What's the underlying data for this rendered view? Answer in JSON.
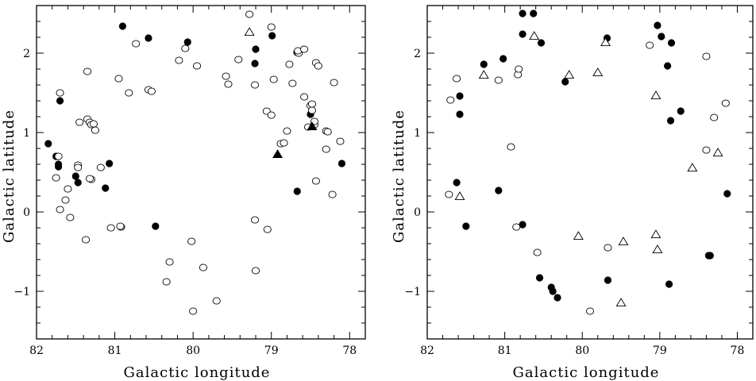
{
  "chart_data": [
    {
      "type": "scatter",
      "title": "",
      "xlabel": "Galactic longitude",
      "ylabel": "Galactic latitude",
      "xlim": [
        82,
        77.8
      ],
      "ylim": [
        -1.6,
        2.6
      ],
      "xticks": [
        82,
        81,
        80,
        79,
        78
      ],
      "yticks": [
        -1,
        0,
        1,
        2
      ],
      "grid": false,
      "legend": "none",
      "series": [
        {
          "marker": "filled-circle",
          "points": [
            [
              81.85,
              0.86
            ],
            [
              81.75,
              0.7
            ],
            [
              81.72,
              0.6
            ],
            [
              81.72,
              0.57
            ],
            [
              81.7,
              1.4
            ],
            [
              81.5,
              0.45
            ],
            [
              81.47,
              0.37
            ],
            [
              81.12,
              0.3
            ],
            [
              81.07,
              0.61
            ],
            [
              80.9,
              2.34
            ],
            [
              80.57,
              2.19
            ],
            [
              80.48,
              -0.18
            ],
            [
              80.07,
              2.14
            ],
            [
              79.2,
              2.05
            ],
            [
              79.21,
              1.87
            ],
            [
              78.99,
              2.22
            ],
            [
              78.67,
              0.26
            ],
            [
              78.5,
              1.23
            ],
            [
              78.1,
              0.61
            ]
          ]
        },
        {
          "marker": "open-circle",
          "points": [
            [
              81.75,
              0.43
            ],
            [
              81.72,
              0.7
            ],
            [
              81.7,
              1.5
            ],
            [
              81.7,
              0.03
            ],
            [
              81.63,
              0.15
            ],
            [
              81.6,
              0.29
            ],
            [
              81.57,
              -0.07
            ],
            [
              81.47,
              0.59
            ],
            [
              81.47,
              0.56
            ],
            [
              81.45,
              1.13
            ],
            [
              81.37,
              -0.35
            ],
            [
              81.35,
              1.77
            ],
            [
              81.35,
              1.17
            ],
            [
              81.32,
              1.13
            ],
            [
              81.3,
              1.1
            ],
            [
              81.3,
              0.41
            ],
            [
              81.32,
              0.42
            ],
            [
              81.27,
              1.11
            ],
            [
              81.25,
              1.03
            ],
            [
              81.18,
              0.56
            ],
            [
              81.05,
              -0.2
            ],
            [
              80.95,
              1.68
            ],
            [
              80.92,
              -0.19
            ],
            [
              80.93,
              -0.18
            ],
            [
              80.82,
              1.5
            ],
            [
              80.73,
              2.12
            ],
            [
              80.57,
              1.54
            ],
            [
              80.53,
              1.52
            ],
            [
              80.34,
              -0.88
            ],
            [
              80.3,
              -0.63
            ],
            [
              80.18,
              1.91
            ],
            [
              80.1,
              2.06
            ],
            [
              80.02,
              -0.37
            ],
            [
              80.0,
              -1.25
            ],
            [
              79.95,
              1.84
            ],
            [
              79.87,
              -0.7
            ],
            [
              79.7,
              -1.12
            ],
            [
              79.58,
              1.71
            ],
            [
              79.55,
              1.61
            ],
            [
              79.42,
              1.92
            ],
            [
              79.28,
              2.49
            ],
            [
              79.21,
              1.6
            ],
            [
              79.21,
              -0.1
            ],
            [
              79.2,
              -0.74
            ],
            [
              79.06,
              1.27
            ],
            [
              79.05,
              -0.22
            ],
            [
              79.0,
              1.22
            ],
            [
              79.0,
              2.33
            ],
            [
              78.97,
              1.67
            ],
            [
              78.88,
              0.86
            ],
            [
              78.84,
              0.87
            ],
            [
              78.8,
              1.02
            ],
            [
              78.77,
              1.86
            ],
            [
              78.73,
              1.62
            ],
            [
              78.67,
              2.01
            ],
            [
              78.66,
              2.02
            ],
            [
              78.65,
              2.0
            ],
            [
              78.66,
              2.03
            ],
            [
              78.58,
              1.45
            ],
            [
              78.58,
              2.05
            ],
            [
              78.53,
              1.07
            ],
            [
              78.5,
              1.34
            ],
            [
              78.48,
              1.36
            ],
            [
              78.48,
              1.28
            ],
            [
              78.45,
              1.1
            ],
            [
              78.45,
              1.14
            ],
            [
              78.43,
              0.39
            ],
            [
              78.43,
              1.88
            ],
            [
              78.4,
              1.84
            ],
            [
              78.3,
              1.02
            ],
            [
              78.3,
              0.79
            ],
            [
              78.28,
              1.01
            ],
            [
              78.22,
              0.22
            ],
            [
              78.2,
              1.63
            ],
            [
              78.12,
              0.89
            ]
          ]
        },
        {
          "marker": "open-triangle",
          "points": [
            [
              79.28,
              2.26
            ]
          ]
        },
        {
          "marker": "filled-triangle",
          "points": [
            [
              78.92,
              0.72
            ],
            [
              78.48,
              1.07
            ]
          ]
        }
      ]
    },
    {
      "type": "scatter",
      "title": "",
      "xlabel": "Galactic longitude",
      "ylabel": "Galactic latitude",
      "xlim": [
        82,
        77.8
      ],
      "ylim": [
        -1.6,
        2.6
      ],
      "xticks": [
        82,
        81,
        80,
        79,
        78
      ],
      "yticks": [
        -1,
        0,
        1,
        2
      ],
      "grid": false,
      "legend": "none",
      "series": [
        {
          "marker": "filled-circle",
          "points": [
            [
              81.62,
              0.37
            ],
            [
              81.58,
              1.46
            ],
            [
              81.58,
              1.23
            ],
            [
              81.5,
              -0.18
            ],
            [
              81.27,
              1.86
            ],
            [
              81.08,
              0.27
            ],
            [
              81.02,
              1.93
            ],
            [
              80.77,
              2.5
            ],
            [
              80.77,
              2.24
            ],
            [
              80.77,
              -0.16
            ],
            [
              80.63,
              2.5
            ],
            [
              80.53,
              2.13
            ],
            [
              80.55,
              -0.83
            ],
            [
              80.4,
              -0.95
            ],
            [
              80.38,
              -1.0
            ],
            [
              80.32,
              -1.08
            ],
            [
              80.22,
              1.64
            ],
            [
              79.68,
              2.19
            ],
            [
              79.67,
              -0.86
            ],
            [
              79.03,
              2.35
            ],
            [
              78.98,
              2.21
            ],
            [
              78.9,
              1.84
            ],
            [
              78.88,
              -0.91
            ],
            [
              78.86,
              1.15
            ],
            [
              78.85,
              2.13
            ],
            [
              78.73,
              1.27
            ],
            [
              78.37,
              -0.55
            ],
            [
              78.35,
              -0.55
            ],
            [
              78.13,
              0.23
            ]
          ]
        },
        {
          "marker": "open-circle",
          "points": [
            [
              81.72,
              0.22
            ],
            [
              81.7,
              1.41
            ],
            [
              81.62,
              1.68
            ],
            [
              81.08,
              1.66
            ],
            [
              80.92,
              0.82
            ],
            [
              80.85,
              -0.19
            ],
            [
              80.83,
              1.73
            ],
            [
              80.82,
              1.8
            ],
            [
              80.58,
              -0.51
            ],
            [
              79.9,
              -1.25
            ],
            [
              79.67,
              -0.45
            ],
            [
              79.13,
              2.1
            ],
            [
              78.4,
              1.96
            ],
            [
              78.4,
              0.78
            ],
            [
              78.3,
              1.19
            ],
            [
              78.15,
              1.37
            ]
          ]
        },
        {
          "marker": "open-triangle",
          "points": [
            [
              81.58,
              0.19
            ],
            [
              81.27,
              1.72
            ],
            [
              80.62,
              2.21
            ],
            [
              80.17,
              1.72
            ],
            [
              80.05,
              -0.31
            ],
            [
              79.8,
              1.75
            ],
            [
              79.7,
              2.13
            ],
            [
              79.5,
              -1.15
            ],
            [
              79.47,
              -0.38
            ],
            [
              79.05,
              1.46
            ],
            [
              79.05,
              -0.29
            ],
            [
              79.03,
              -0.48
            ],
            [
              78.58,
              0.55
            ],
            [
              78.25,
              0.74
            ]
          ]
        }
      ]
    }
  ]
}
